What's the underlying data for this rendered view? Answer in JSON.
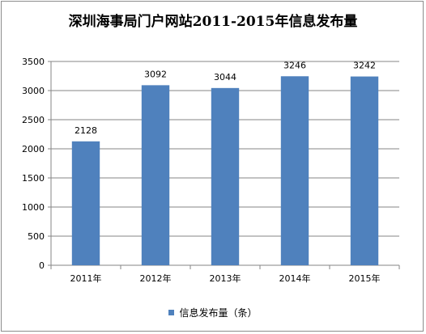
{
  "chart_data": {
    "type": "bar",
    "title": "深圳海事局门户网站2011-2015年信息发布量",
    "categories": [
      "2011年",
      "2012年",
      "2013年",
      "2014年",
      "2015年"
    ],
    "series": [
      {
        "name": "信息发布量（条）",
        "values": [
          2128,
          3092,
          3044,
          3246,
          3242
        ],
        "color": "#4f81bd"
      }
    ],
    "ylim": [
      0,
      3500
    ],
    "yticks": [
      0,
      500,
      1000,
      1500,
      2000,
      2500,
      3000,
      3500
    ],
    "ytick_labels": [
      "0",
      "500",
      "1000",
      "1500",
      "2000",
      "2500",
      "3000",
      "3500"
    ],
    "grid": true,
    "legend": "bottom"
  }
}
